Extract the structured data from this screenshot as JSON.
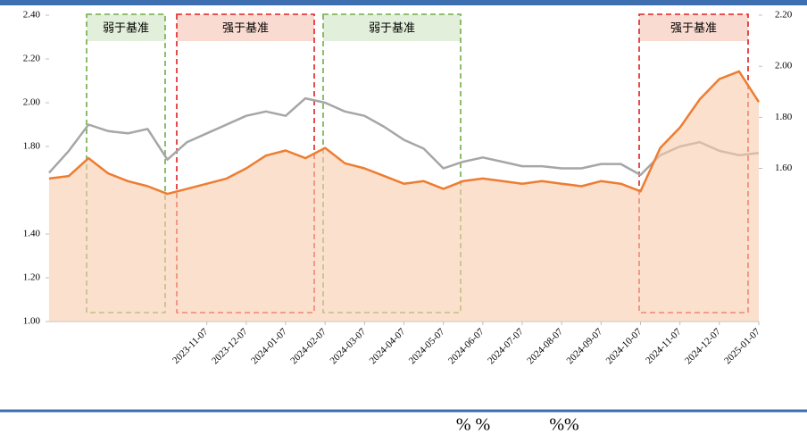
{
  "chart_data": {
    "type": "line",
    "categories": [
      null,
      null,
      null,
      null,
      null,
      null,
      null,
      null,
      "2023-11-07",
      null,
      "2023-12-07",
      null,
      "2024-01-07",
      null,
      "2024-02-07",
      null,
      "2024-03-07",
      null,
      "2024-04-07",
      null,
      "2024-05-07",
      null,
      "2024-06-07",
      null,
      "2024-07-07",
      null,
      "2024-08-07",
      null,
      "2024-09-07",
      null,
      "2024-10-07",
      null,
      "2024-11-07",
      null,
      "2024-12-07",
      null,
      "2025-01-07"
    ],
    "series": [
      {
        "color": "#a6a6a6",
        "axis": "y",
        "values": [
          1.68,
          1.78,
          1.9,
          1.87,
          1.86,
          1.88,
          1.74,
          1.82,
          1.86,
          1.9,
          1.94,
          1.96,
          1.94,
          2.02,
          2.0,
          1.96,
          1.94,
          1.89,
          1.83,
          1.79,
          1.7,
          1.73,
          1.75,
          1.73,
          1.71,
          1.71,
          1.7,
          1.7,
          1.72,
          1.72,
          1.67,
          1.76,
          1.8,
          1.82,
          1.78,
          1.76,
          1.77
        ]
      },
      {
        "color": "#ed7d31",
        "area_color": "#f8cbad",
        "axis": "y2",
        "values": [
          1.56,
          1.57,
          1.64,
          1.58,
          1.55,
          1.53,
          1.5,
          1.52,
          1.54,
          1.56,
          1.6,
          1.65,
          1.67,
          1.64,
          1.68,
          1.62,
          1.6,
          1.57,
          1.54,
          1.55,
          1.52,
          1.55,
          1.56,
          1.55,
          1.54,
          1.55,
          1.54,
          1.53,
          1.55,
          1.54,
          1.51,
          1.68,
          1.76,
          1.87,
          1.95,
          1.98,
          1.86
        ]
      }
    ],
    "ylim": [
      1.0,
      2.4
    ],
    "yticks": [
      {
        "value": 1.0,
        "label": "1.00"
      },
      {
        "value": 1.2,
        "label": "1.20"
      },
      {
        "value": 1.4,
        "label": "1.40"
      },
      {
        "value": 1.8,
        "label": "1.80"
      },
      {
        "value": 2.0,
        "label": "2.00"
      },
      {
        "value": 2.2,
        "label": "2.20"
      },
      {
        "value": 2.4,
        "label": "2.40"
      }
    ],
    "y2lim": [
      1.0,
      2.2
    ],
    "y2ticks": [
      {
        "value": 1.6,
        "label": "1.60"
      },
      {
        "value": 1.8,
        "label": "1.80"
      },
      {
        "value": 2.0,
        "label": "2.00"
      },
      {
        "value": 2.2,
        "label": "2.20"
      }
    ],
    "annotations": [
      {
        "text": "弱于基准",
        "color": "#70ad47",
        "fill": "#e2efda"
      },
      {
        "text": "强于基准",
        "color": "#e02020",
        "fill": "#fadbd2"
      },
      {
        "text": "弱于基准",
        "color": "#70ad47",
        "fill": "#e2efda"
      },
      {
        "text": "强于基准",
        "color": "#e02020",
        "fill": "#fadbd2"
      }
    ],
    "footnotes": [
      "% %",
      "%%"
    ]
  }
}
